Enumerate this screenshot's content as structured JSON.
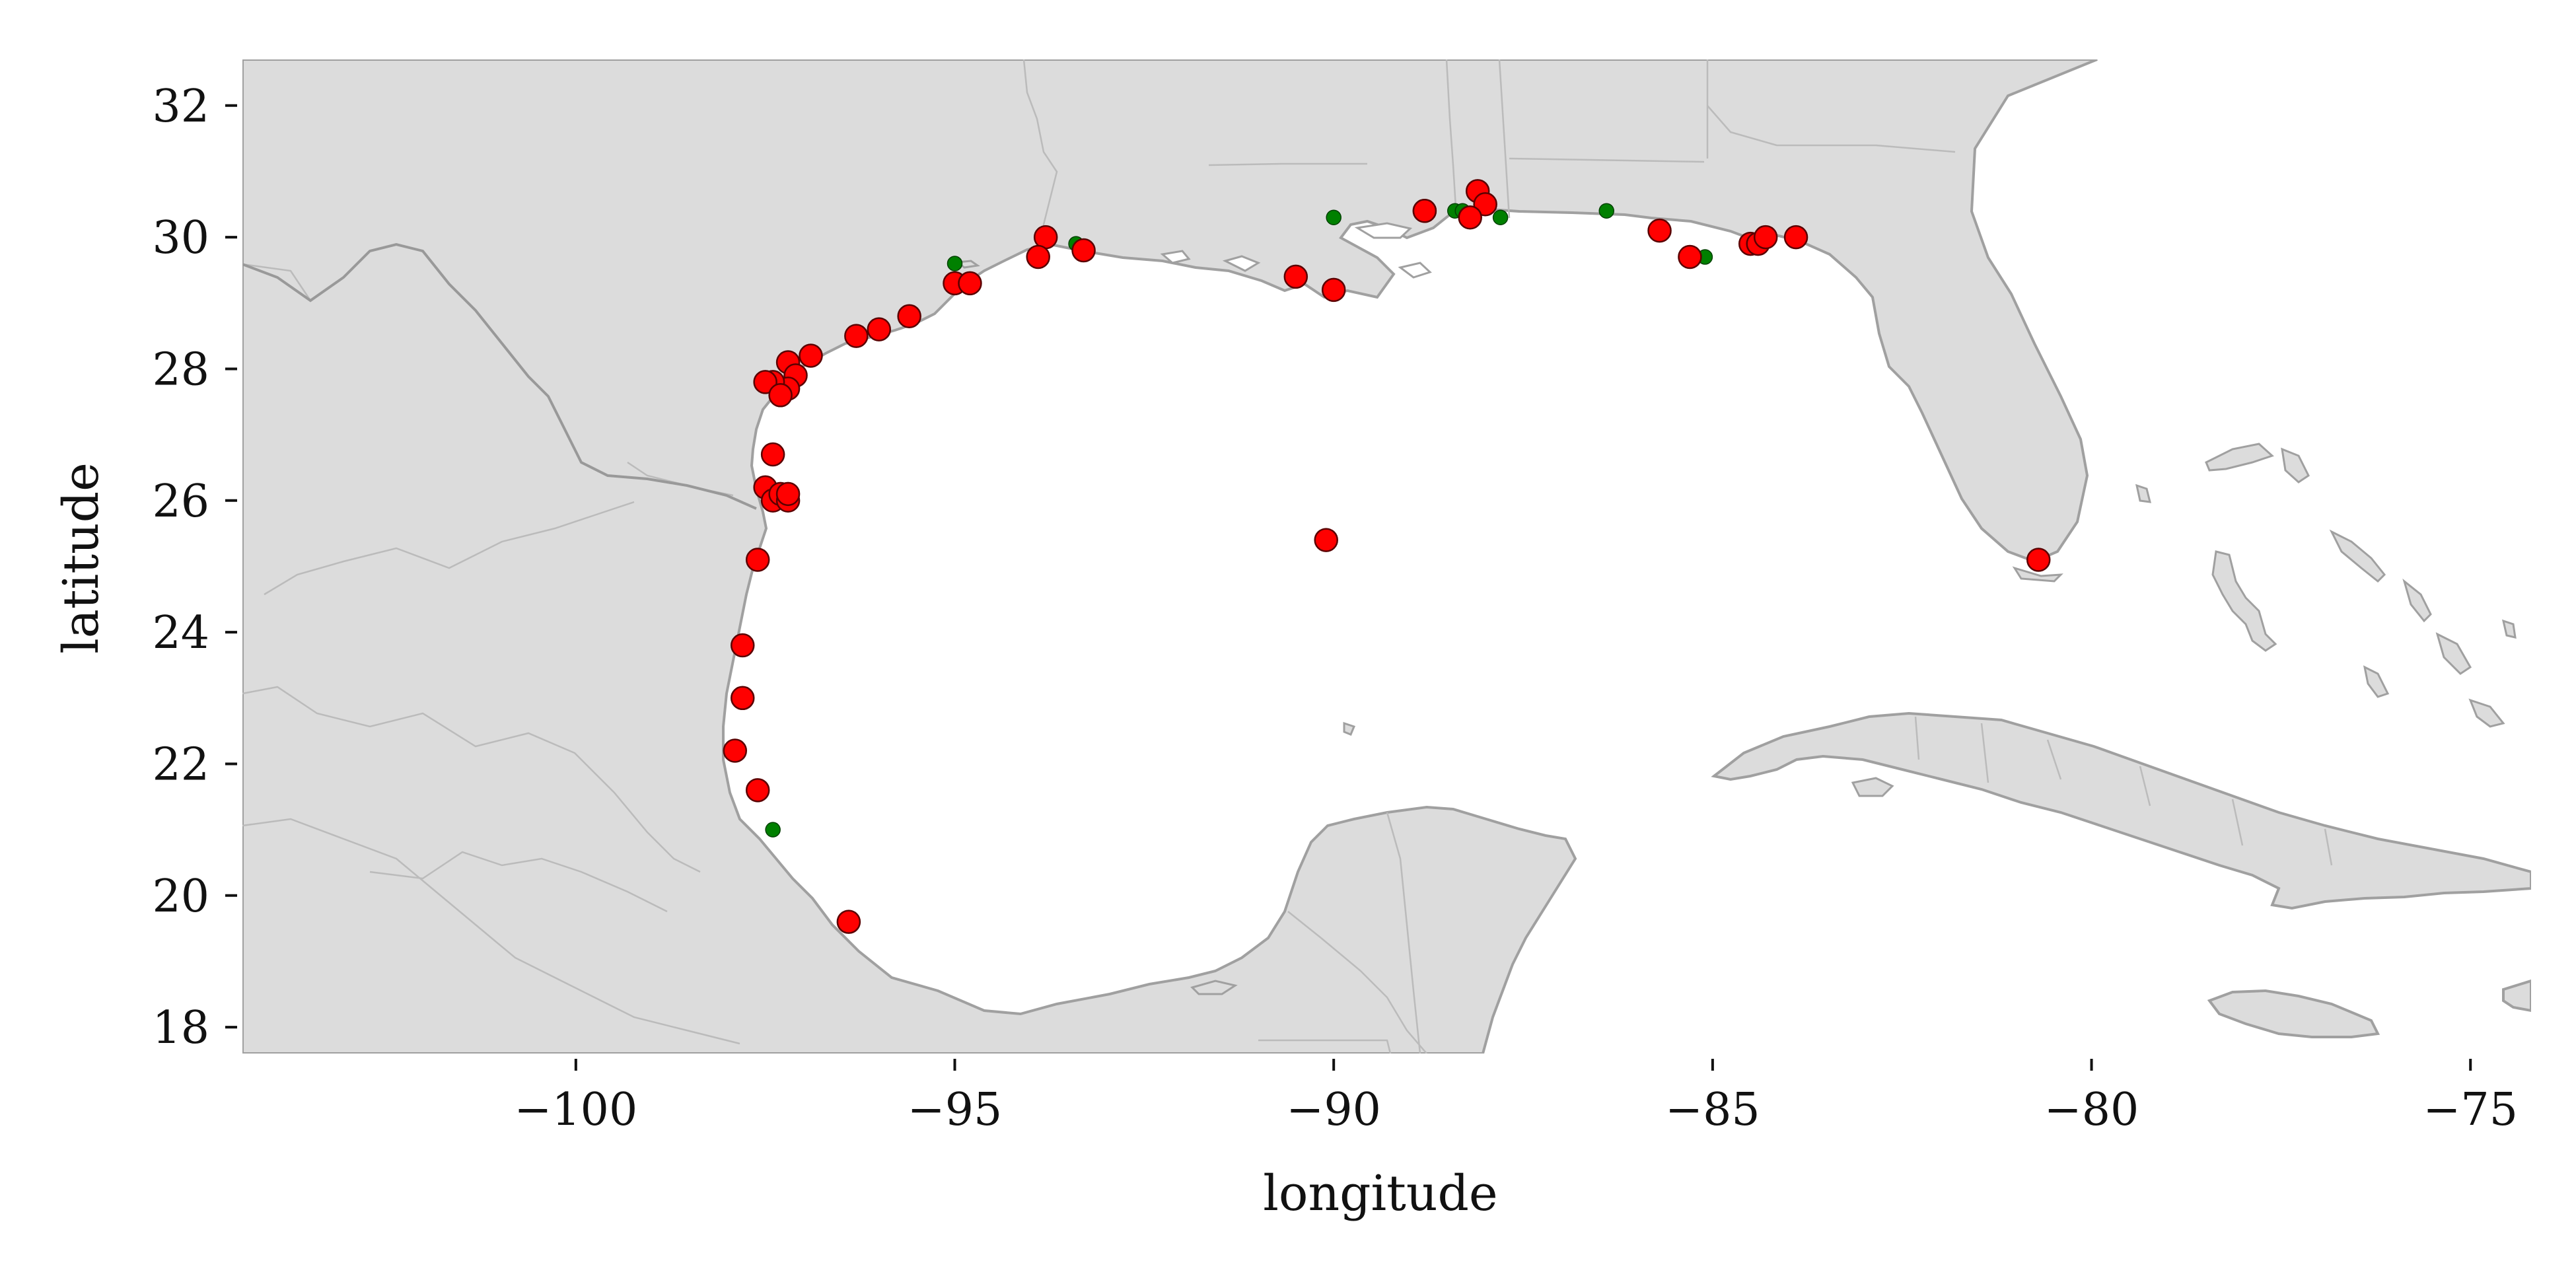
{
  "chart_data": {
    "type": "scatter",
    "xlabel": "longitude",
    "ylabel": "latitude",
    "xlim": [
      -104.4,
      -74.2
    ],
    "ylim": [
      17.6,
      32.7
    ],
    "x_ticks": [
      -100,
      -95,
      -90,
      -85,
      -80,
      -75
    ],
    "y_ticks": [
      18,
      20,
      22,
      24,
      26,
      28,
      30,
      32
    ],
    "x_tick_labels": [
      "−100",
      "−95",
      "−90",
      "−85",
      "−80",
      "−75"
    ],
    "y_tick_labels": [
      "18",
      "20",
      "22",
      "24",
      "26",
      "28",
      "30",
      "32"
    ],
    "grid": false,
    "colors": {
      "land": "#dcdcdc",
      "coast": "#a0a0a0",
      "water": "#ffffff",
      "red": "#ff0000",
      "green": "#008000"
    },
    "series": [
      {
        "color": "#ff0000",
        "x": [
          -93.8,
          -93.9,
          -93.3,
          -95.0,
          -94.8,
          -95.6,
          -96.0,
          -96.3,
          -96.9,
          -97.2,
          -97.1,
          -97.2,
          -97.4,
          -97.5,
          -97.3,
          -97.4,
          -97.5,
          -97.4,
          -97.3,
          -97.2,
          -97.2,
          -97.6,
          -97.8,
          -97.8,
          -97.9,
          -97.6,
          -96.4,
          -90.5,
          -90.0,
          -88.8,
          -88.8,
          -88.1,
          -88.0,
          -88.2,
          -85.7,
          -85.3,
          -84.5,
          -84.4,
          -84.3,
          -83.9,
          -80.7,
          -90.1
        ],
        "y": [
          30.0,
          29.7,
          29.8,
          29.3,
          29.3,
          28.8,
          28.6,
          28.5,
          28.2,
          28.1,
          27.9,
          27.7,
          27.8,
          27.8,
          27.6,
          26.7,
          26.2,
          26.0,
          26.1,
          26.0,
          26.1,
          25.1,
          23.8,
          23.0,
          22.2,
          21.6,
          19.6,
          29.4,
          29.2,
          30.4,
          30.4,
          30.7,
          30.5,
          30.3,
          30.1,
          29.7,
          29.9,
          29.9,
          30.0,
          30.0,
          25.1,
          25.4
        ]
      },
      {
        "color": "#008000",
        "x": [
          -95.0,
          -93.4,
          -90.0,
          -88.4,
          -88.3,
          -87.8,
          -86.4,
          -85.1,
          -97.4
        ],
        "y": [
          29.6,
          29.9,
          30.3,
          30.4,
          30.4,
          30.3,
          30.4,
          29.7,
          21.0
        ]
      }
    ]
  }
}
